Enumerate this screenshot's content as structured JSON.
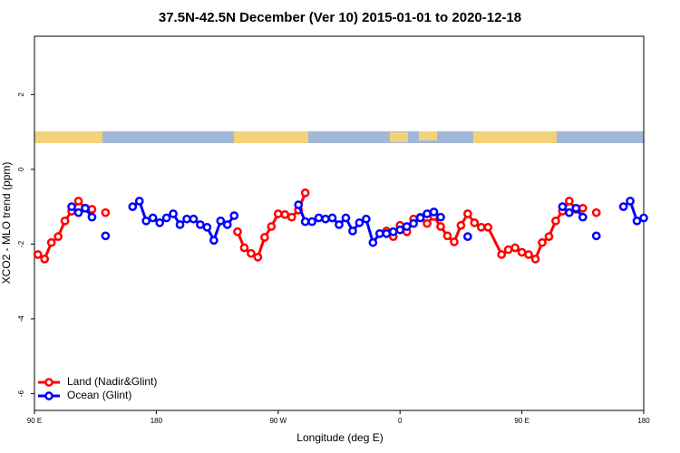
{
  "chart_data": {
    "type": "line",
    "title": "37.5N-42.5N December (Ver 10)   2015-01-01 to 2020-12-18",
    "x_label": "Longitude (deg E)",
    "y_label": "XCO2 - MLO trend (ppm)",
    "xlim": [
      90,
      540
    ],
    "xticks": [
      {
        "value": 90,
        "label": "90 E"
      },
      180,
      {
        "value": 270,
        "label": "90 W"
      },
      {
        "value": 360,
        "label": "0"
      },
      {
        "value": 450,
        "label": "90 E"
      },
      {
        "value": 540,
        "label": "180"
      }
    ],
    "ylim": [
      -6.45,
      3.56
    ],
    "yticks": [
      -6,
      -4,
      -2,
      0,
      2
    ],
    "legend": "bottom-left",
    "series": [
      {
        "name": "Land (Nadir&Glint)",
        "color": "#ff0000",
        "x": [
          92.5,
          97.5,
          102.5,
          107.5,
          112.5,
          117.5,
          122.5,
          127.5,
          132.5,
          137.5,
          142.5,
          147.5,
          240,
          245,
          250,
          255,
          260,
          265,
          270,
          275,
          280,
          285,
          290,
          320,
          350,
          355,
          360,
          365,
          370,
          375,
          380,
          385,
          390,
          395,
          400,
          405,
          410,
          415,
          420,
          425,
          435,
          440,
          445,
          450,
          455,
          460,
          465,
          470,
          475,
          480,
          485,
          490,
          495,
          500,
          505
        ],
        "values": [
          -2.28,
          -2.4,
          -1.96,
          -1.8,
          -1.38,
          -1.12,
          -0.85,
          -1.04,
          -1.07,
          null,
          -1.16,
          null,
          -1.67,
          -2.1,
          -2.25,
          -2.35,
          -1.82,
          -1.53,
          -1.19,
          -1.21,
          -1.28,
          -1.09,
          -0.63,
          null,
          -1.65,
          -1.8,
          -1.5,
          -1.67,
          -1.33,
          -1.28,
          -1.45,
          -1.26,
          -1.53,
          -1.78,
          -1.94,
          -1.5,
          -1.19,
          -1.43,
          -1.55,
          -1.55,
          -2.28,
          -2.15,
          -2.1,
          -2.22,
          -2.28,
          -2.4,
          -1.96,
          -1.8,
          -1.38,
          -1.12,
          -0.85,
          -1.07,
          -1.04,
          null,
          -1.16
        ]
      },
      {
        "name": "Ocean (Glint)",
        "color": "#0000ff",
        "x": [
          117.5,
          122.5,
          127.5,
          132.5,
          137.5,
          142.5,
          150,
          162.5,
          167.5,
          172.5,
          177.5,
          182.5,
          187.5,
          192.5,
          197.5,
          202.5,
          207.5,
          212.5,
          217.5,
          222.5,
          227.5,
          232.5,
          237.5,
          260,
          285,
          290,
          295,
          300,
          305,
          310,
          315,
          320,
          325,
          330,
          335,
          340,
          345,
          350,
          355,
          360,
          365,
          370,
          375,
          380,
          385,
          390,
          400,
          410,
          450,
          480,
          485,
          490,
          495,
          500,
          505,
          515,
          525,
          530,
          535,
          540
        ],
        "values": [
          -1.0,
          -1.16,
          -1.04,
          -1.28,
          null,
          -1.78,
          null,
          -1.0,
          -0.85,
          -1.38,
          -1.3,
          -1.43,
          -1.3,
          -1.19,
          -1.48,
          -1.33,
          -1.33,
          -1.48,
          -1.55,
          -1.9,
          -1.38,
          -1.48,
          -1.24,
          null,
          -0.95,
          -1.4,
          -1.4,
          -1.3,
          -1.33,
          -1.3,
          -1.48,
          -1.3,
          -1.65,
          -1.43,
          -1.33,
          -1.96,
          -1.72,
          -1.72,
          -1.67,
          -1.62,
          -1.53,
          -1.45,
          -1.3,
          -1.19,
          -1.14,
          -1.28,
          null,
          -1.8,
          null,
          -1.0,
          -1.16,
          -1.04,
          -1.28,
          null,
          -1.78,
          null,
          -1.0,
          -0.85,
          -1.38,
          -1.3
        ]
      }
    ]
  }
}
